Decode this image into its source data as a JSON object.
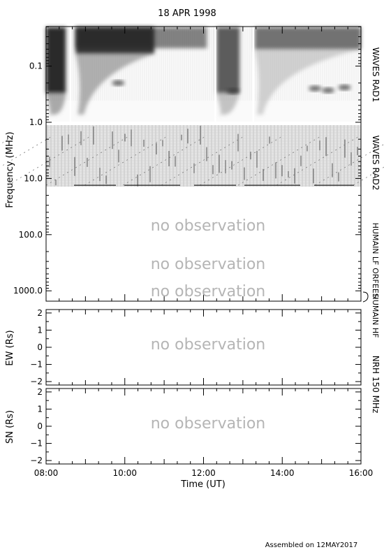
{
  "page": {
    "title": "18 APR 1998",
    "footer": "Assembled on 12MAY2017"
  },
  "chart_data": [
    {
      "type": "heatmap",
      "title": "18 APR 1998",
      "panel": "dynamic-spectrum",
      "xlabel": "Time (UT)",
      "ylabel": "Frequency (MHz)",
      "y_scale": "log",
      "y_reversed": true,
      "x_ticks": [
        "08:00",
        "10:00",
        "12:00",
        "14:00",
        "16:00"
      ],
      "y_ticks": [
        "0.1",
        "1.0",
        "10.0",
        "100.0",
        "1000.0"
      ],
      "xlim": [
        "08:00",
        "16:00"
      ],
      "ylim": [
        0.02,
        2000
      ],
      "colormap": [
        "#ffffff",
        "#000000"
      ],
      "instruments": [
        {
          "name": "WAVES RAD1",
          "freq_range_mhz": [
            0.02,
            1.0
          ],
          "status": "observed"
        },
        {
          "name": "WAVES RAD2",
          "freq_range_mhz": [
            1.0,
            14.0
          ],
          "status": "observed"
        },
        {
          "name": "HUMAIN LF",
          "status": "no observation"
        },
        {
          "name": "ORFEES",
          "status": "no observation"
        },
        {
          "name": "HUMAIN HF",
          "status": "no observation"
        }
      ],
      "annotations": [
        "no observation",
        "no observation",
        "no observation"
      ],
      "data_gaps_ut": [
        "08:37",
        "12:18",
        "13:16"
      ],
      "bursts": [
        {
          "start": "08:00",
          "end": "08:30",
          "fmin_mhz": 0.02,
          "fmax_mhz": 0.3,
          "intensity": 0.9
        },
        {
          "start": "08:45",
          "end": "10:45",
          "fmin_mhz": 0.02,
          "fmax_mhz": 0.06,
          "intensity": 0.85
        },
        {
          "start": "12:20",
          "end": "12:55",
          "fmin_mhz": 0.02,
          "fmax_mhz": 0.3,
          "intensity": 0.7
        },
        {
          "start": "13:18",
          "end": "16:00",
          "fmin_mhz": 0.02,
          "fmax_mhz": 0.05,
          "intensity": 0.6
        }
      ]
    },
    {
      "type": "line",
      "panel": "ew",
      "ylabel": "EW (Rs)",
      "y_ticks": [
        "2",
        "1",
        "0",
        "−1",
        "−2"
      ],
      "ylim": [
        -2.2,
        2.2
      ],
      "annotation": "no observation",
      "series": []
    },
    {
      "type": "line",
      "panel": "sn",
      "ylabel": "SN (Rs)",
      "y_ticks": [
        "2",
        "1",
        "0",
        "−1",
        "−2"
      ],
      "ylim": [
        -2.2,
        2.2
      ],
      "annotation": "no observation",
      "right_label": "NRH 150 MHz",
      "series": []
    }
  ]
}
